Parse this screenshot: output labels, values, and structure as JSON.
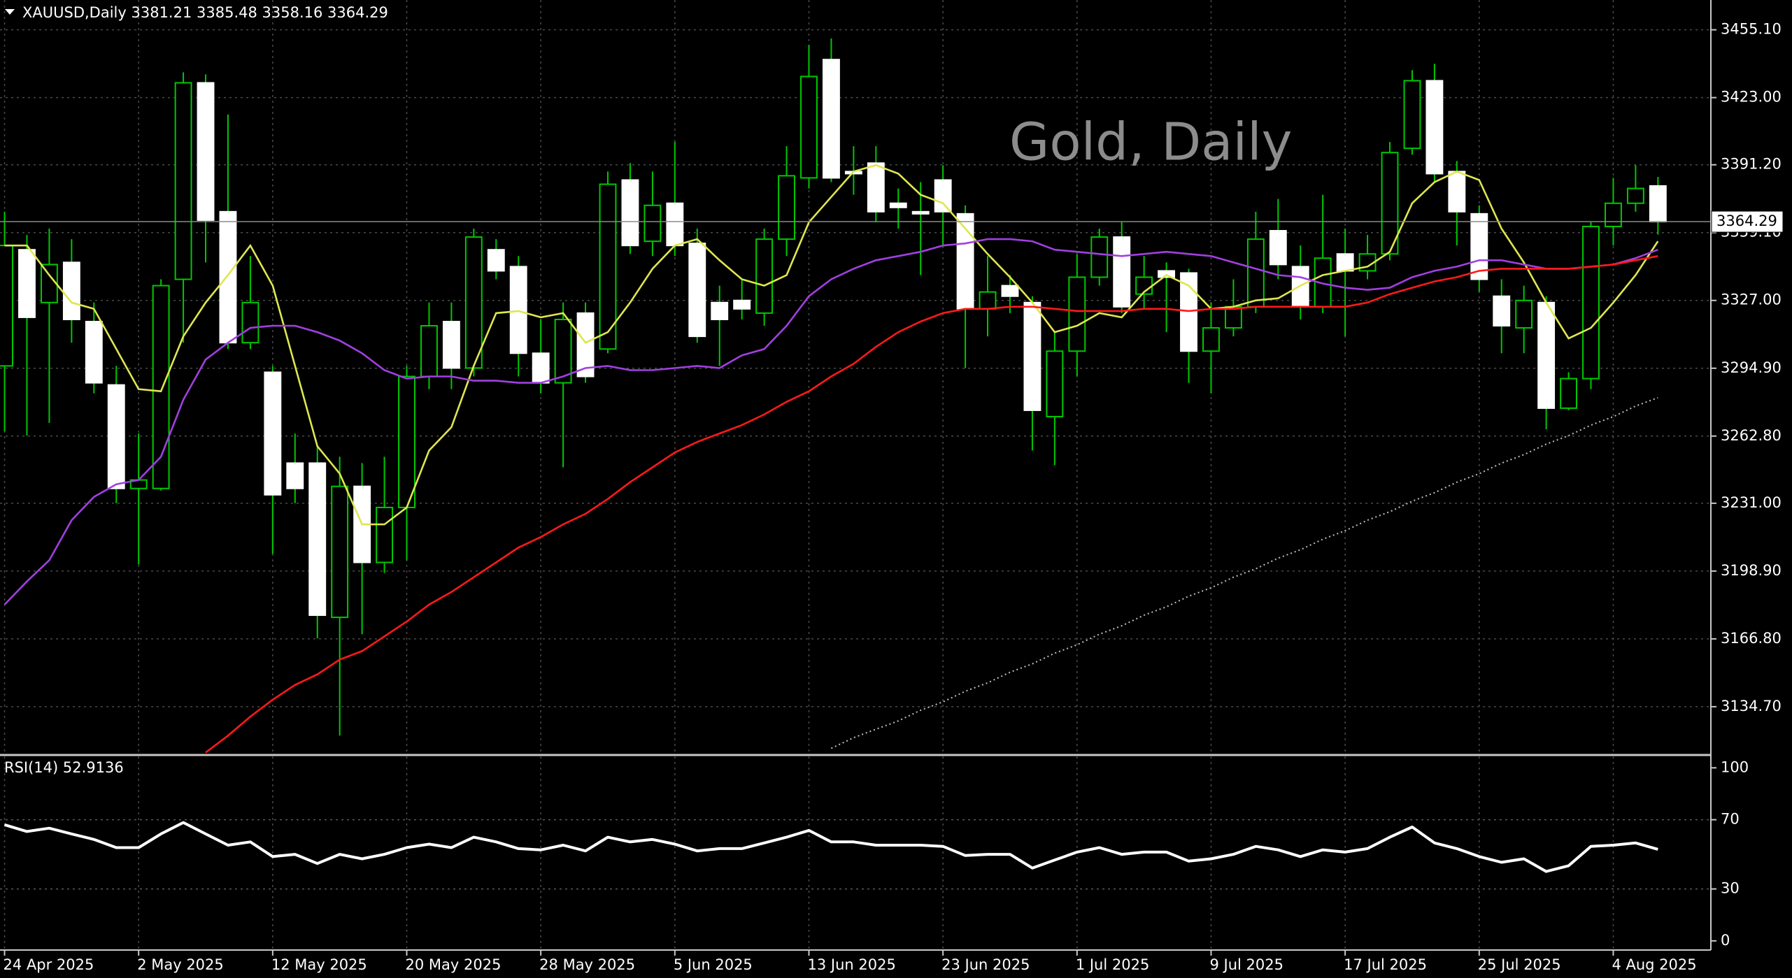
{
  "chart_data": [
    {
      "type": "candlestick",
      "title": "XAUUSD,Daily  3381.21 3385.48 3358.16 3364.29",
      "annotation": "Gold, Daily",
      "categories": [
        "24 Apr 2025",
        null,
        null,
        null,
        null,
        null,
        "2 May 2025",
        null,
        null,
        null,
        null,
        null,
        "12 May 2025",
        null,
        null,
        null,
        null,
        null,
        "20 May 2025",
        null,
        null,
        null,
        null,
        null,
        "28 May 2025",
        null,
        null,
        null,
        null,
        null,
        "5 Jun 2025",
        null,
        null,
        null,
        null,
        null,
        "13 Jun 2025",
        null,
        null,
        null,
        null,
        null,
        "23 Jun 2025",
        null,
        null,
        null,
        null,
        null,
        "1 Jul 2025",
        null,
        null,
        null,
        null,
        null,
        "9 Jul 2025",
        null,
        null,
        null,
        null,
        null,
        "17 Jul 2025",
        null,
        null,
        null,
        null,
        null,
        "25 Jul 2025",
        null,
        null,
        null,
        null,
        null,
        "4 Aug 2025",
        null,
        null
      ],
      "open": [
        3296,
        3351,
        3326,
        3345,
        3317,
        3287,
        3238,
        3238,
        3337,
        3430,
        3369,
        3307,
        3293,
        3250,
        3250,
        3177,
        3239,
        3203,
        3229,
        3291,
        3317,
        3295,
        3351,
        3343,
        3302,
        3288,
        3321,
        3304,
        3384,
        3355,
        3373,
        3354,
        3326,
        3327,
        3321,
        3356,
        3385,
        3441,
        3388,
        3392,
        3373,
        3369,
        3384,
        3368,
        3323,
        3334,
        3326,
        3272,
        3303,
        3338,
        3357,
        3330,
        3341,
        3340,
        3303,
        3314,
        3324,
        3360,
        3343,
        3324,
        3349,
        3341,
        3349,
        3399,
        3431,
        3388,
        3368,
        3329,
        3314,
        3326,
        3276,
        3290,
        3362,
        3373,
        3381.21
      ],
      "high": [
        3369,
        3358,
        3361,
        3356,
        3326,
        3296,
        3264,
        3337,
        3435,
        3434,
        3415,
        3348,
        3296,
        3264,
        3258,
        3253,
        3250,
        3253,
        3296,
        3326,
        3326,
        3361,
        3356,
        3348,
        3318,
        3326,
        3326,
        3388,
        3392,
        3388,
        3402,
        3361,
        3334,
        3337,
        3361,
        3400,
        3448,
        3451,
        3400,
        3400,
        3380,
        3383,
        3391,
        3372,
        3348,
        3339,
        3329,
        3312,
        3349,
        3361,
        3364,
        3348,
        3345,
        3342,
        3326,
        3337,
        3369,
        3375,
        3353,
        3377,
        3361,
        3358,
        3402,
        3436,
        3439,
        3393,
        3372,
        3337,
        3334,
        3329,
        3293,
        3364,
        3385,
        3391,
        3385.48
      ],
      "low": [
        3265,
        3263,
        3269,
        3307,
        3283,
        3231,
        3202,
        3237,
        3307,
        3345,
        3304,
        3304,
        3207,
        3231,
        3167,
        3121,
        3169,
        3198,
        3204,
        3285,
        3285,
        3291,
        3337,
        3291,
        3283,
        3248,
        3288,
        3302,
        3349,
        3348,
        3348,
        3307,
        3296,
        3318,
        3315,
        3348,
        3380,
        3383,
        3377,
        3364,
        3361,
        3339,
        3353,
        3295,
        3310,
        3321,
        3256,
        3249,
        3291,
        3334,
        3321,
        3323,
        3312,
        3288,
        3283,
        3310,
        3321,
        3337,
        3318,
        3321,
        3310,
        3337,
        3346,
        3396,
        3383,
        3353,
        3331,
        3302,
        3302,
        3266,
        3275,
        3285,
        3353,
        3369,
        3358.16
      ],
      "close": [
        3353,
        3319,
        3344,
        3318,
        3288,
        3238,
        3242,
        3334,
        3430,
        3365,
        3307,
        3326,
        3235,
        3238,
        3178,
        3239,
        3203,
        3229,
        3291,
        3315,
        3295,
        3357,
        3341,
        3302,
        3288,
        3318,
        3291,
        3382,
        3353,
        3372,
        3353,
        3310,
        3318,
        3323,
        3356,
        3386,
        3433,
        3385,
        3387,
        3369,
        3371,
        3368,
        3369,
        3323,
        3331,
        3329,
        3275,
        3303,
        3338,
        3357,
        3324,
        3338,
        3338,
        3303,
        3314,
        3324,
        3356,
        3344,
        3324,
        3347,
        3341,
        3349,
        3397,
        3431,
        3387,
        3369,
        3337,
        3315,
        3327,
        3276,
        3290,
        3362,
        3373,
        3380,
        3364.29
      ],
      "up_color": "#000000",
      "up_line_color": "#00c800",
      "down_color": "#ffffff",
      "wick_color": "#00c800",
      "series": [
        {
          "color": "#dfe650",
          "values": [
            3353,
            3353,
            3339,
            3326,
            3323,
            3304,
            3285,
            3284,
            3310,
            3326,
            3339,
            3353,
            3334,
            3296,
            3258,
            3245,
            3221,
            3221,
            3229,
            3256,
            3267,
            3296,
            3321,
            3322,
            3319,
            3321,
            3307,
            3312,
            3326,
            3342,
            3353,
            3356,
            3346,
            3337,
            3334,
            3339,
            3364,
            3376,
            3388,
            3391,
            3387,
            3377,
            3373,
            3361,
            3349,
            3338,
            3326,
            3312,
            3315,
            3321,
            3319,
            3331,
            3339,
            3334,
            3323,
            3324,
            3327,
            3328,
            3334,
            3339,
            3341,
            3343,
            3350,
            3373,
            3383,
            3388,
            3384,
            3361,
            3345,
            3326,
            3309,
            3314,
            3326,
            3339,
            3355
          ]
        },
        {
          "color": "#a040e0",
          "values": [
            3183,
            3194,
            3204,
            3223,
            3234,
            3240,
            3242,
            3253,
            3280,
            3299,
            3307,
            3314,
            3315,
            3315,
            3312,
            3308,
            3302,
            3294,
            3290,
            3291,
            3291,
            3289,
            3289,
            3288,
            3288,
            3291,
            3295,
            3296,
            3294,
            3294,
            3295,
            3296,
            3295,
            3301,
            3304,
            3315,
            3329,
            3337,
            3342,
            3346,
            3348,
            3350,
            3353,
            3354,
            3356,
            3356,
            3355,
            3351,
            3350,
            3349,
            3348,
            3349,
            3350,
            3349,
            3348,
            3345,
            3342,
            3339,
            3338,
            3335,
            3333,
            3332,
            3333,
            3338,
            3341,
            3343,
            3346,
            3346,
            3344,
            3342,
            3342,
            3343,
            3344,
            3347,
            3351
          ]
        },
        {
          "color": "#ff1a1a",
          "values": [
            null,
            null,
            null,
            null,
            null,
            null,
            null,
            null,
            null,
            3113,
            3121,
            3130,
            3138,
            3145,
            3150,
            3157,
            3161,
            3168,
            3175,
            3183,
            3189,
            3196,
            3203,
            3210,
            3215,
            3221,
            3226,
            3233,
            3241,
            3248,
            3255,
            3260,
            3264,
            3268,
            3273,
            3279,
            3284,
            3291,
            3297,
            3305,
            3312,
            3317,
            3321,
            3323,
            3323,
            3324,
            3324,
            3323,
            3322,
            3322,
            3322,
            3323,
            3323,
            3322,
            3323,
            3323,
            3324,
            3324,
            3324,
            3324,
            3324,
            3326,
            3330,
            3333,
            3336,
            3338,
            3341,
            3342,
            3342,
            3342,
            3342,
            3343,
            3344,
            3346,
            3348
          ]
        },
        {
          "color": "#c0c0c0",
          "dashed": true,
          "values": [
            null,
            null,
            null,
            null,
            null,
            null,
            null,
            null,
            null,
            null,
            null,
            null,
            null,
            null,
            null,
            null,
            null,
            null,
            null,
            null,
            null,
            null,
            null,
            null,
            null,
            null,
            null,
            null,
            null,
            null,
            null,
            null,
            null,
            null,
            null,
            null,
            null,
            3115,
            3120,
            3124,
            3128,
            3133,
            3137,
            3142,
            3146,
            3151,
            3155,
            3160,
            3164,
            3169,
            3173,
            3178,
            3182,
            3187,
            3191,
            3196,
            3200,
            3205,
            3209,
            3214,
            3218,
            3223,
            3227,
            3232,
            3236,
            3241,
            3245,
            3250,
            3254,
            3259,
            3263,
            3268,
            3272,
            3277,
            3281
          ]
        }
      ],
      "ylim": [
        3112.5,
        3469.2
      ],
      "yticks": [
        {
          "value": 3455.1,
          "label": "3455.10"
        },
        {
          "value": 3423,
          "label": "3423.00"
        },
        {
          "value": 3391.2,
          "label": "3391.20"
        },
        {
          "value": 3359.1,
          "label": "3359.10"
        },
        {
          "value": 3327,
          "label": "3327.00"
        },
        {
          "value": 3294.9,
          "label": "3294.90"
        },
        {
          "value": 3262.8,
          "label": "3262.80"
        },
        {
          "value": 3231,
          "label": "3231.00"
        },
        {
          "value": 3198.9,
          "label": "3198.90"
        },
        {
          "value": 3166.8,
          "label": "3166.80"
        },
        {
          "value": 3134.7,
          "label": "3134.70"
        }
      ],
      "grid": true
    },
    {
      "type": "line",
      "title": "RSI(14) 52.9136",
      "color": "#ffffff",
      "values": [
        67.1,
        63.2,
        65.1,
        61.8,
        58.6,
        53.9,
        53.9,
        61.8,
        68.4,
        61.8,
        55.3,
        57.2,
        48.7,
        50.0,
        44.7,
        50.0,
        47.4,
        50.0,
        53.9,
        55.9,
        53.9,
        59.9,
        57.2,
        53.3,
        52.6,
        55.3,
        52.0,
        59.9,
        57.2,
        58.6,
        55.9,
        52.0,
        53.3,
        53.3,
        56.6,
        59.9,
        63.8,
        57.2,
        57.2,
        55.3,
        55.3,
        55.3,
        54.6,
        49.3,
        50.0,
        50.0,
        42.1,
        46.7,
        51.3,
        53.9,
        50.0,
        51.3,
        51.3,
        46.1,
        47.4,
        50.0,
        54.6,
        52.6,
        48.7,
        52.6,
        51.3,
        53.3,
        59.9,
        65.8,
        56.6,
        53.3,
        48.7,
        45.4,
        47.4,
        40.1,
        43.4,
        54.6,
        55.3,
        56.6,
        52.9136
      ],
      "levels": [
        70,
        30
      ],
      "ylim": [
        -5.3,
        106.6
      ],
      "yticks": [
        100,
        70,
        30,
        0
      ]
    }
  ]
}
